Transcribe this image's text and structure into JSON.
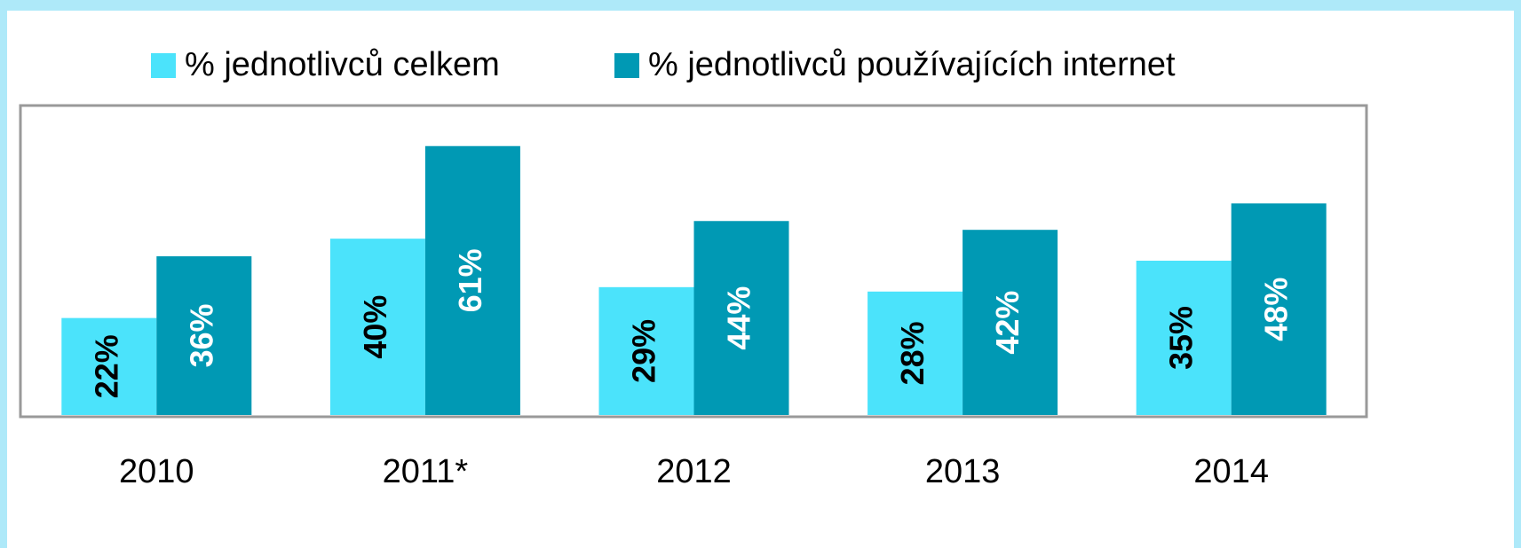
{
  "chart_data": {
    "type": "bar",
    "categories": [
      "2010",
      "2011*",
      "2012",
      "2013",
      "2014"
    ],
    "series": [
      {
        "name": "% jednotlivců celkem",
        "color": "#4be3fb",
        "label_color": "#000000",
        "values": [
          22,
          40,
          29,
          28,
          35
        ],
        "value_labels": [
          "22%",
          "40%",
          "29%",
          "28%",
          "35%"
        ]
      },
      {
        "name": "% jednotlivců používajících internet",
        "color": "#0099b4",
        "label_color": "#ffffff",
        "values": [
          36,
          61,
          44,
          42,
          48
        ],
        "value_labels": [
          "36%",
          "61%",
          "44%",
          "42%",
          "48%"
        ]
      }
    ],
    "ylim": [
      0,
      70
    ],
    "legend": "top"
  }
}
